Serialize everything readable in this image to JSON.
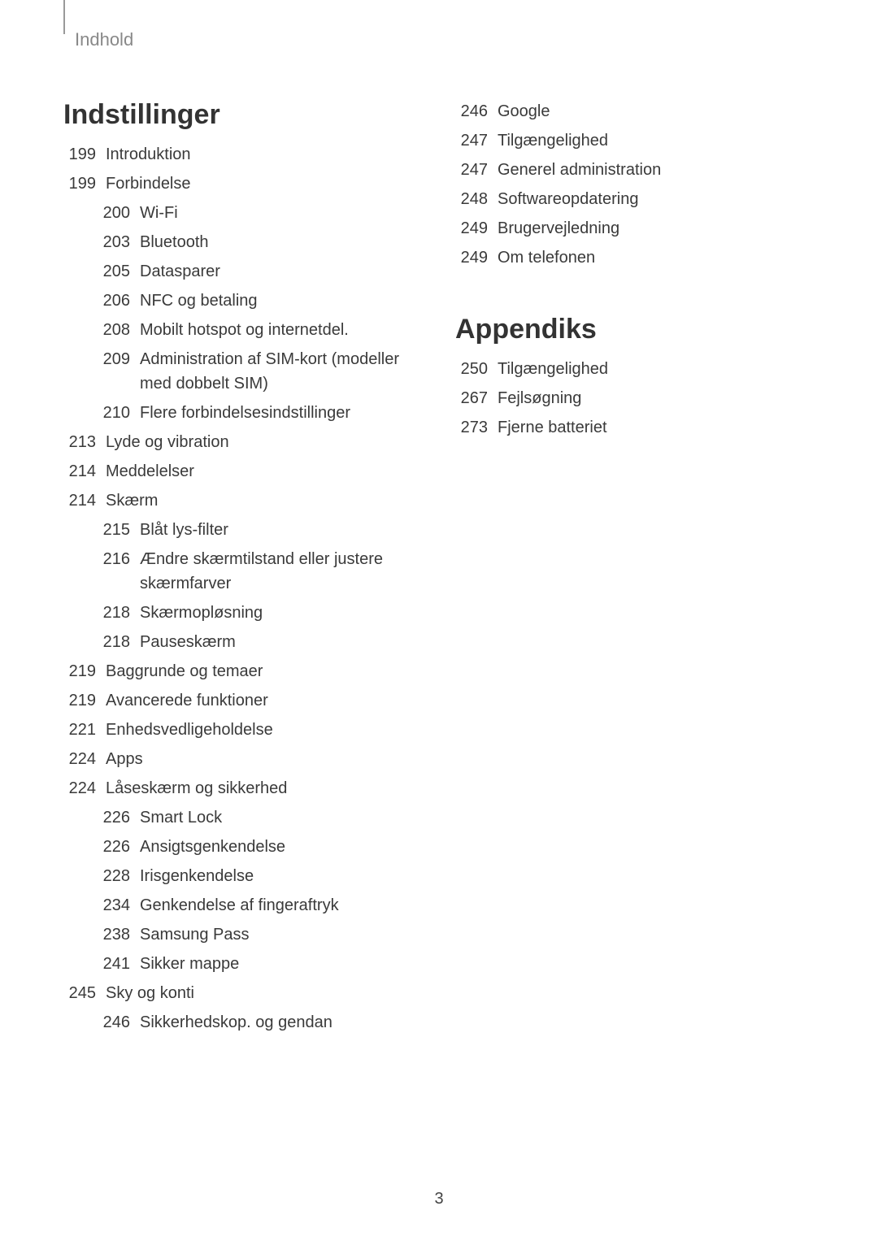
{
  "breadcrumb": "Indhold",
  "pageNumber": "3",
  "leftColumn": {
    "sectionTitle": "Indstillinger",
    "entries": [
      {
        "page": "199",
        "text": "Introduktion",
        "sub": false
      },
      {
        "page": "199",
        "text": "Forbindelse",
        "sub": false
      },
      {
        "page": "200",
        "text": "Wi-Fi",
        "sub": true
      },
      {
        "page": "203",
        "text": "Bluetooth",
        "sub": true
      },
      {
        "page": "205",
        "text": "Datasparer",
        "sub": true
      },
      {
        "page": "206",
        "text": "NFC og betaling",
        "sub": true
      },
      {
        "page": "208",
        "text": "Mobilt hotspot og internetdel.",
        "sub": true
      },
      {
        "page": "209",
        "text": "Administration af SIM-kort (modeller med dobbelt SIM)",
        "sub": true
      },
      {
        "page": "210",
        "text": "Flere forbindelsesindstillinger",
        "sub": true
      },
      {
        "page": "213",
        "text": "Lyde og vibration",
        "sub": false
      },
      {
        "page": "214",
        "text": "Meddelelser",
        "sub": false
      },
      {
        "page": "214",
        "text": "Skærm",
        "sub": false
      },
      {
        "page": "215",
        "text": "Blåt lys-filter",
        "sub": true
      },
      {
        "page": "216",
        "text": "Ændre skærmtilstand eller justere skærmfarver",
        "sub": true
      },
      {
        "page": "218",
        "text": "Skærmopløsning",
        "sub": true
      },
      {
        "page": "218",
        "text": "Pauseskærm",
        "sub": true
      },
      {
        "page": "219",
        "text": "Baggrunde og temaer",
        "sub": false
      },
      {
        "page": "219",
        "text": "Avancerede funktioner",
        "sub": false
      },
      {
        "page": "221",
        "text": "Enhedsvedligeholdelse",
        "sub": false
      },
      {
        "page": "224",
        "text": "Apps",
        "sub": false
      },
      {
        "page": "224",
        "text": "Låseskærm og sikkerhed",
        "sub": false
      },
      {
        "page": "226",
        "text": "Smart Lock",
        "sub": true
      },
      {
        "page": "226",
        "text": "Ansigtsgenkendelse",
        "sub": true
      },
      {
        "page": "228",
        "text": "Irisgenkendelse",
        "sub": true
      },
      {
        "page": "234",
        "text": "Genkendelse af fingeraftryk",
        "sub": true
      },
      {
        "page": "238",
        "text": "Samsung Pass",
        "sub": true
      },
      {
        "page": "241",
        "text": "Sikker mappe",
        "sub": true
      },
      {
        "page": "245",
        "text": "Sky og konti",
        "sub": false
      },
      {
        "page": "246",
        "text": "Sikkerhedskop. og gendan",
        "sub": true
      }
    ]
  },
  "rightColumn": {
    "topEntries": [
      {
        "page": "246",
        "text": "Google",
        "sub": false
      },
      {
        "page": "247",
        "text": "Tilgængelighed",
        "sub": false
      },
      {
        "page": "247",
        "text": "Generel administration",
        "sub": false
      },
      {
        "page": "248",
        "text": "Softwareopdatering",
        "sub": false
      },
      {
        "page": "249",
        "text": "Brugervejledning",
        "sub": false
      },
      {
        "page": "249",
        "text": "Om telefonen",
        "sub": false
      }
    ],
    "sectionTitle": "Appendiks",
    "entries": [
      {
        "page": "250",
        "text": "Tilgængelighed",
        "sub": false
      },
      {
        "page": "267",
        "text": "Fejlsøgning",
        "sub": false
      },
      {
        "page": "273",
        "text": "Fjerne batteriet",
        "sub": false
      }
    ]
  }
}
